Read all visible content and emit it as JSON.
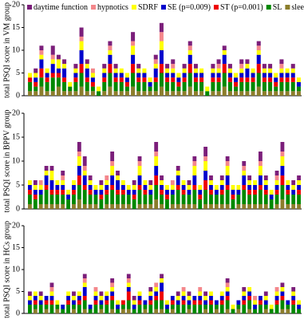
{
  "chart_data": [
    {
      "type": "bar",
      "stacked": true,
      "ylabel": "total PSQI score in VM group",
      "ylim": [
        0,
        20
      ],
      "yticks": [
        0,
        5,
        10,
        15,
        20
      ],
      "legend": "top-left",
      "series": [
        {
          "name": "daytime function",
          "color": "#7b1e7a",
          "values": [
            0,
            1,
            1,
            0,
            2,
            1,
            1,
            0,
            1,
            2,
            1,
            0,
            0,
            1,
            1,
            1,
            0,
            0,
            2,
            1,
            0,
            0,
            1,
            2,
            1,
            1,
            0,
            1,
            1,
            1,
            0,
            0,
            1,
            1,
            1,
            1,
            0,
            1,
            1,
            0,
            1,
            1,
            1,
            0,
            1,
            0,
            1,
            0
          ]
        },
        {
          "name": "hypnotics",
          "color": "#f4878b",
          "values": [
            0,
            0,
            1,
            0,
            1,
            0,
            0,
            0,
            0,
            1,
            0,
            1,
            0,
            0,
            1,
            0,
            0,
            0,
            1,
            0,
            0,
            0,
            1,
            2,
            0,
            1,
            0,
            0,
            1,
            0,
            0,
            0,
            0,
            1,
            0,
            0,
            0,
            1,
            0,
            0,
            1,
            0,
            0,
            0,
            1,
            0,
            0,
            0
          ]
        },
        {
          "name": "SDRF",
          "color": "#ffff00",
          "values": [
            1,
            1,
            1,
            1,
            1,
            2,
            1,
            1,
            1,
            2,
            1,
            1,
            1,
            1,
            1,
            1,
            1,
            1,
            2,
            1,
            1,
            1,
            1,
            2,
            1,
            1,
            1,
            1,
            1,
            1,
            1,
            1,
            1,
            1,
            1,
            1,
            1,
            1,
            1,
            1,
            1,
            1,
            1,
            1,
            1,
            1,
            1,
            1
          ]
        },
        {
          "name": "SE (p=0.009)",
          "color": "#0000cc",
          "values": [
            0,
            1,
            2,
            1,
            2,
            1,
            2,
            0,
            1,
            3,
            2,
            1,
            0,
            1,
            2,
            1,
            1,
            1,
            2,
            1,
            1,
            1,
            2,
            3,
            1,
            1,
            1,
            1,
            2,
            1,
            1,
            0,
            1,
            1,
            2,
            1,
            1,
            1,
            2,
            1,
            2,
            1,
            1,
            1,
            1,
            1,
            1,
            1
          ]
        },
        {
          "name": "ST (p=0.001)",
          "color": "#ee0000",
          "values": [
            1,
            1,
            2,
            1,
            1,
            1,
            1,
            0,
            1,
            2,
            1,
            1,
            0,
            1,
            2,
            1,
            1,
            1,
            2,
            1,
            1,
            0,
            1,
            2,
            1,
            1,
            1,
            1,
            2,
            1,
            1,
            0,
            1,
            1,
            2,
            1,
            1,
            1,
            1,
            1,
            2,
            1,
            1,
            1,
            1,
            1,
            1,
            0
          ]
        },
        {
          "name": "SL",
          "color": "#008800",
          "values": [
            2,
            1,
            2,
            2,
            3,
            2,
            2,
            1,
            2,
            3,
            2,
            1,
            1,
            2,
            3,
            2,
            2,
            1,
            3,
            2,
            2,
            1,
            2,
            3,
            2,
            2,
            1,
            2,
            3,
            2,
            2,
            1,
            2,
            2,
            3,
            2,
            1,
            2,
            2,
            2,
            3,
            2,
            2,
            1,
            2,
            2,
            2,
            1
          ]
        },
        {
          "name": "slee quality",
          "color": "#8b7d2b",
          "values": [
            1,
            1,
            2,
            1,
            1,
            2,
            1,
            1,
            1,
            2,
            1,
            1,
            0,
            1,
            2,
            1,
            1,
            1,
            2,
            1,
            1,
            1,
            1,
            2,
            1,
            1,
            1,
            1,
            2,
            1,
            1,
            0,
            1,
            1,
            2,
            1,
            1,
            1,
            1,
            1,
            2,
            1,
            1,
            1,
            1,
            1,
            1,
            1
          ]
        }
      ]
    },
    {
      "type": "bar",
      "stacked": true,
      "ylabel": "total PSQI score in BPPV group",
      "ylim": [
        0,
        20
      ],
      "yticks": [
        0,
        5,
        10,
        15,
        20
      ],
      "series": [
        {
          "color": "#7b1e7a",
          "values": [
            0,
            1,
            0,
            1,
            1,
            0,
            1,
            0,
            0,
            2,
            2,
            1,
            0,
            1,
            0,
            2,
            1,
            0,
            0,
            1,
            1,
            0,
            1,
            2,
            1,
            0,
            0,
            1,
            0,
            1,
            1,
            0,
            2,
            1,
            0,
            1,
            1,
            0,
            0,
            1,
            1,
            0,
            2,
            1,
            0,
            1,
            2,
            0,
            1,
            1
          ]
        },
        {
          "color": "#f4878b",
          "values": [
            0,
            0,
            1,
            0,
            0,
            0,
            1,
            0,
            0,
            1,
            1,
            0,
            0,
            0,
            1,
            1,
            0,
            0,
            0,
            0,
            1,
            0,
            0,
            1,
            0,
            0,
            1,
            0,
            0,
            0,
            1,
            0,
            1,
            0,
            0,
            0,
            1,
            0,
            0,
            1,
            0,
            0,
            1,
            0,
            0,
            1,
            1,
            0,
            0,
            0
          ]
        },
        {
          "color": "#ffff00",
          "values": [
            1,
            1,
            1,
            1,
            2,
            1,
            1,
            1,
            1,
            2,
            1,
            1,
            1,
            1,
            1,
            2,
            1,
            1,
            1,
            1,
            2,
            1,
            1,
            2,
            1,
            1,
            1,
            1,
            1,
            1,
            2,
            1,
            2,
            1,
            1,
            1,
            2,
            1,
            1,
            1,
            1,
            1,
            2,
            1,
            1,
            1,
            2,
            1,
            1,
            1
          ]
        },
        {
          "color": "#0000cc",
          "values": [
            1,
            1,
            1,
            2,
            2,
            1,
            1,
            1,
            1,
            2,
            2,
            1,
            1,
            1,
            1,
            2,
            2,
            1,
            1,
            1,
            2,
            1,
            1,
            2,
            1,
            1,
            1,
            2,
            1,
            1,
            2,
            1,
            2,
            1,
            1,
            1,
            2,
            1,
            1,
            2,
            1,
            1,
            2,
            1,
            1,
            1,
            2,
            1,
            1,
            1
          ]
        },
        {
          "color": "#ee0000",
          "values": [
            1,
            1,
            0,
            1,
            1,
            1,
            1,
            0,
            1,
            2,
            1,
            1,
            0,
            1,
            1,
            1,
            1,
            1,
            0,
            1,
            1,
            1,
            0,
            2,
            1,
            1,
            0,
            1,
            1,
            0,
            1,
            1,
            2,
            1,
            0,
            1,
            1,
            1,
            0,
            1,
            1,
            1,
            1,
            1,
            0,
            1,
            2,
            1,
            0,
            1
          ]
        },
        {
          "color": "#008800",
          "values": [
            2,
            2,
            2,
            3,
            2,
            2,
            2,
            2,
            2,
            3,
            3,
            2,
            2,
            2,
            2,
            3,
            2,
            2,
            2,
            2,
            3,
            2,
            2,
            3,
            2,
            2,
            2,
            3,
            2,
            2,
            3,
            2,
            3,
            2,
            2,
            2,
            3,
            2,
            2,
            3,
            2,
            2,
            3,
            2,
            2,
            2,
            3,
            2,
            2,
            2
          ]
        },
        {
          "color": "#8b7d2b",
          "values": [
            1,
            0,
            1,
            1,
            1,
            1,
            1,
            0,
            1,
            2,
            1,
            1,
            1,
            0,
            1,
            1,
            1,
            1,
            1,
            0,
            1,
            1,
            1,
            2,
            1,
            0,
            1,
            1,
            1,
            1,
            1,
            0,
            1,
            1,
            1,
            1,
            1,
            0,
            1,
            1,
            1,
            1,
            1,
            1,
            0,
            1,
            2,
            1,
            1,
            1
          ]
        }
      ]
    },
    {
      "type": "bar",
      "stacked": true,
      "ylabel": "total PSQI score in HCs group",
      "ylim": [
        0,
        20
      ],
      "yticks": [
        0,
        5,
        10,
        15,
        20
      ],
      "series": [
        {
          "color": "#7b1e7a",
          "values": [
            1,
            0,
            1,
            0,
            1,
            0,
            0,
            0,
            1,
            0,
            1,
            0,
            0,
            1,
            0,
            1,
            0,
            0,
            1,
            1,
            0,
            0,
            1,
            0,
            1,
            0,
            0,
            1,
            0,
            1,
            0,
            0,
            1,
            0,
            0,
            0,
            1,
            0,
            0,
            1,
            0,
            0,
            0,
            1,
            0,
            0,
            1,
            0,
            1,
            0
          ]
        },
        {
          "color": "#f4878b",
          "values": [
            0,
            0,
            0,
            0,
            1,
            0,
            0,
            0,
            0,
            0,
            1,
            0,
            1,
            0,
            0,
            1,
            0,
            0,
            1,
            0,
            0,
            0,
            0,
            1,
            0,
            0,
            0,
            0,
            1,
            0,
            0,
            1,
            0,
            0,
            0,
            0,
            1,
            0,
            0,
            0,
            0,
            1,
            0,
            0,
            0,
            1,
            0,
            0,
            0,
            0
          ]
        },
        {
          "color": "#ffff00",
          "values": [
            1,
            1,
            1,
            0,
            1,
            1,
            0,
            1,
            1,
            1,
            1,
            0,
            1,
            1,
            1,
            1,
            1,
            0,
            1,
            1,
            1,
            0,
            1,
            1,
            1,
            1,
            0,
            1,
            1,
            1,
            0,
            1,
            1,
            1,
            0,
            1,
            1,
            1,
            0,
            1,
            1,
            1,
            0,
            1,
            1,
            1,
            1,
            0,
            1,
            1
          ]
        },
        {
          "color": "#0000cc",
          "values": [
            1,
            1,
            1,
            1,
            1,
            0,
            1,
            1,
            1,
            1,
            2,
            1,
            1,
            1,
            1,
            1,
            1,
            0,
            1,
            1,
            1,
            1,
            1,
            1,
            2,
            1,
            1,
            1,
            1,
            1,
            1,
            1,
            1,
            1,
            1,
            1,
            1,
            0,
            1,
            1,
            1,
            1,
            1,
            1,
            0,
            1,
            1,
            1,
            1,
            1
          ]
        },
        {
          "color": "#ee0000",
          "values": [
            0,
            1,
            0,
            1,
            1,
            0,
            0,
            1,
            0,
            1,
            1,
            0,
            1,
            0,
            1,
            1,
            0,
            1,
            2,
            0,
            1,
            0,
            1,
            1,
            2,
            0,
            1,
            0,
            1,
            0,
            1,
            1,
            0,
            1,
            0,
            1,
            1,
            0,
            0,
            1,
            1,
            0,
            1,
            0,
            0,
            1,
            1,
            0,
            1,
            0
          ]
        },
        {
          "color": "#008800",
          "values": [
            2,
            1,
            2,
            1,
            2,
            1,
            1,
            2,
            1,
            2,
            2,
            1,
            2,
            1,
            2,
            2,
            1,
            1,
            2,
            1,
            2,
            1,
            2,
            2,
            2,
            1,
            1,
            2,
            2,
            1,
            2,
            2,
            1,
            2,
            1,
            2,
            2,
            1,
            1,
            2,
            2,
            1,
            2,
            1,
            1,
            2,
            2,
            1,
            2,
            1
          ]
        },
        {
          "color": "#8b7d2b",
          "values": [
            0,
            1,
            0,
            1,
            0,
            1,
            0,
            0,
            1,
            0,
            1,
            0,
            0,
            1,
            0,
            1,
            0,
            1,
            1,
            0,
            0,
            1,
            0,
            1,
            1,
            0,
            1,
            0,
            0,
            1,
            0,
            0,
            1,
            0,
            1,
            0,
            1,
            0,
            1,
            0,
            1,
            0,
            0,
            1,
            0,
            0,
            1,
            1,
            0,
            0
          ]
        }
      ]
    }
  ]
}
